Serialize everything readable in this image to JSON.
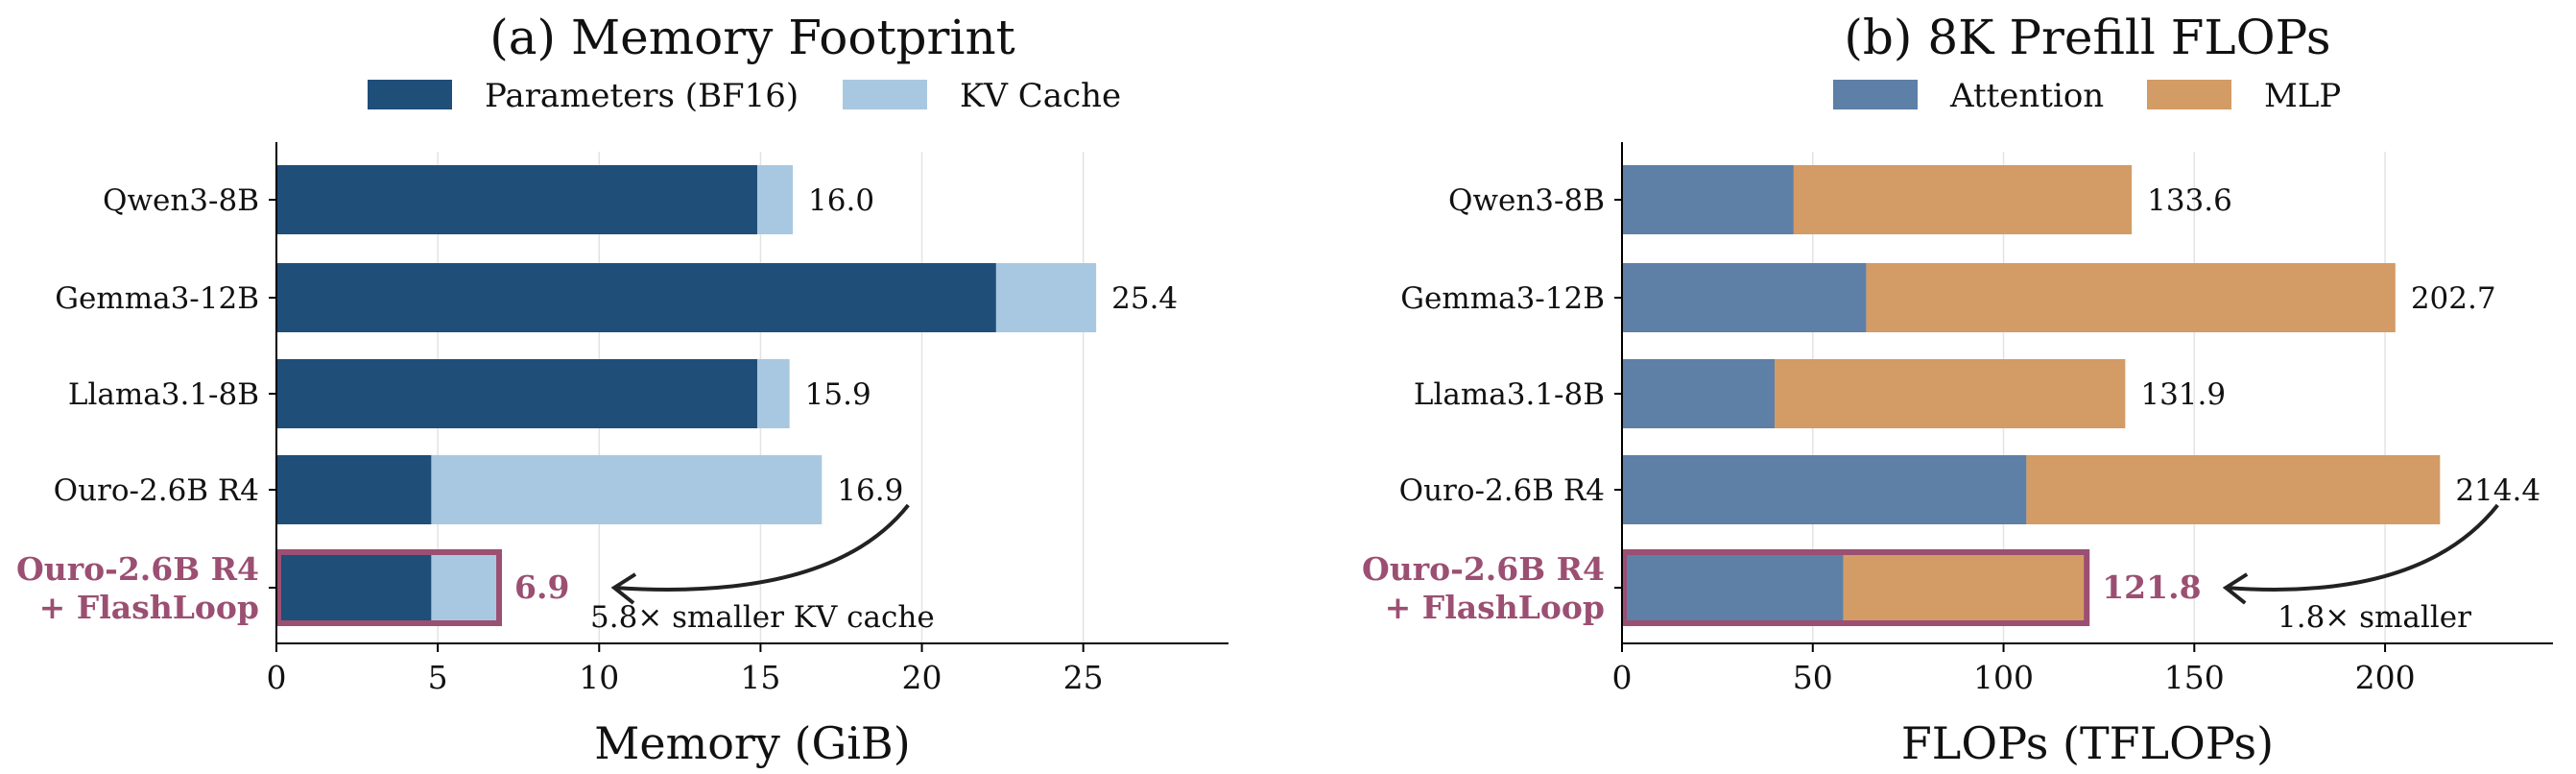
{
  "chart_data": [
    {
      "type": "bar",
      "stacked": true,
      "orientation": "horizontal",
      "title": "(a) Memory Footprint",
      "xlabel": "Memory (GiB)",
      "xlim": [
        0,
        29.5
      ],
      "xticks": [
        0,
        5,
        10,
        15,
        20,
        25
      ],
      "grid": "x",
      "legend": "top-center",
      "categories": [
        "Qwen3-8B",
        "Gemma3-12B",
        "Llama3.1-8B",
        "Ouro-2.6B R4",
        "Ouro-2.6B R4\n+ FlashLoop"
      ],
      "highlight_index": 4,
      "series": [
        {
          "name": "Parameters (BF16)",
          "color": "#1f4e79",
          "values": [
            14.9,
            22.3,
            14.9,
            4.8,
            4.8
          ]
        },
        {
          "name": "KV Cache",
          "color": "#a8c8e1",
          "values": [
            1.1,
            3.1,
            1.0,
            12.1,
            2.1
          ]
        }
      ],
      "totals": [
        "16.0",
        "25.4",
        "15.9",
        "16.9",
        "6.9"
      ],
      "annotation": {
        "text": "5.8× smaller KV cache",
        "from_index": 3,
        "to_index": 4
      }
    },
    {
      "type": "bar",
      "stacked": true,
      "orientation": "horizontal",
      "title": "(b) 8K Prefill FLOPs",
      "xlabel": "FLOPs (TFLOPs)",
      "xlim": [
        0,
        244
      ],
      "xticks": [
        0,
        50,
        100,
        150,
        200
      ],
      "grid": "x",
      "legend": "top-center",
      "categories": [
        "Qwen3-8B",
        "Gemma3-12B",
        "Llama3.1-8B",
        "Ouro-2.6B R4",
        "Ouro-2.6B R4\n+ FlashLoop"
      ],
      "highlight_index": 4,
      "series": [
        {
          "name": "Attention",
          "color": "#5e7fa6",
          "values": [
            45,
            64,
            40,
            106,
            58
          ]
        },
        {
          "name": "MLP",
          "color": "#d39b65",
          "values": [
            88.6,
            138.7,
            91.9,
            108.4,
            63.8
          ]
        }
      ],
      "totals": [
        "133.6",
        "202.7",
        "131.9",
        "214.4",
        "121.8"
      ],
      "annotation": {
        "text": "1.8× smaller",
        "from_index": 3,
        "to_index": 4
      }
    }
  ],
  "colors": {
    "highlight": "#9b4f72",
    "arrow": "#222222"
  }
}
